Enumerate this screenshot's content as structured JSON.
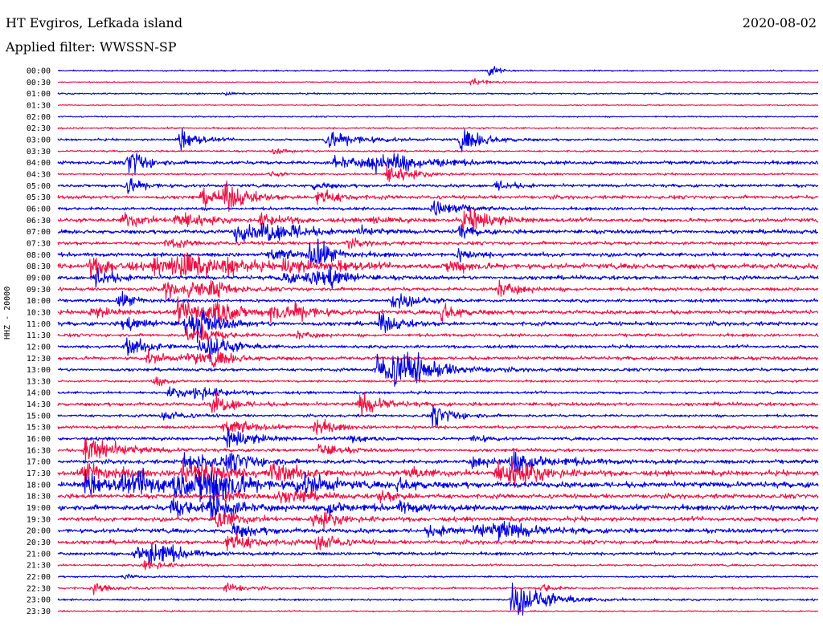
{
  "header": {
    "station": "HT Evgiros, Lefkada island",
    "date": "2020-08-02",
    "filter": "Applied filter: WWSSN-SP"
  },
  "chart_data": {
    "type": "line",
    "title": "HT Evgiros, Lefkada island",
    "ylabel": "HHZ - 20000",
    "row_labels": [
      "00:00",
      "00:30",
      "01:00",
      "01:30",
      "02:00",
      "02:30",
      "03:00",
      "03:30",
      "04:00",
      "04:30",
      "05:00",
      "05:30",
      "06:00",
      "06:30",
      "07:00",
      "07:30",
      "08:00",
      "08:30",
      "09:00",
      "09:30",
      "10:00",
      "10:30",
      "11:00",
      "11:30",
      "12:00",
      "12:30",
      "13:00",
      "13:30",
      "14:00",
      "14:30",
      "15:00",
      "15:30",
      "16:00",
      "16:30",
      "17:00",
      "17:30",
      "18:00",
      "18:30",
      "19:00",
      "19:30",
      "20:00",
      "20:30",
      "21:00",
      "21:30",
      "22:00",
      "22:30",
      "23:00",
      "23:30"
    ],
    "colors": {
      "even_rows": "#0000dd",
      "odd_rows": "#ee1144"
    },
    "x_range_minutes": [
      0,
      30
    ],
    "series": [
      {
        "row": 0,
        "noise": 0.6,
        "events": [
          [
            17.0,
            9,
            0.3
          ]
        ]
      },
      {
        "row": 1,
        "noise": 0.5,
        "events": [
          [
            16.3,
            5,
            0.6
          ]
        ]
      },
      {
        "row": 2,
        "noise": 0.7,
        "events": [
          [
            6.6,
            3,
            0.2
          ]
        ]
      },
      {
        "row": 3,
        "noise": 0.5,
        "events": []
      },
      {
        "row": 4,
        "noise": 0.6,
        "events": []
      },
      {
        "row": 5,
        "noise": 0.8,
        "events": []
      },
      {
        "row": 6,
        "noise": 1.0,
        "events": [
          [
            4.8,
            14,
            0.6
          ],
          [
            10.6,
            10,
            1.2
          ],
          [
            15.9,
            12,
            0.9
          ]
        ]
      },
      {
        "row": 7,
        "noise": 0.8,
        "events": [
          [
            8.5,
            3,
            0.6
          ]
        ]
      },
      {
        "row": 8,
        "noise": 1.6,
        "events": [
          [
            2.8,
            18,
            0.5
          ],
          [
            10.9,
            6,
            1.5
          ],
          [
            12.3,
            7,
            1.2
          ],
          [
            13.3,
            6,
            0.8
          ],
          [
            14.9,
            5,
            0.6
          ]
        ]
      },
      {
        "row": 9,
        "noise": 0.9,
        "events": [
          [
            8.4,
            3,
            0.4
          ],
          [
            13.0,
            12,
            0.8
          ]
        ]
      },
      {
        "row": 10,
        "noise": 1.4,
        "events": [
          [
            2.7,
            10,
            0.6
          ],
          [
            10.1,
            4,
            0.6
          ],
          [
            17.3,
            6,
            0.6
          ]
        ]
      },
      {
        "row": 11,
        "noise": 1.6,
        "events": [
          [
            5.7,
            9,
            0.8
          ],
          [
            6.6,
            12,
            0.8
          ],
          [
            10.2,
            10,
            0.7
          ]
        ]
      },
      {
        "row": 12,
        "noise": 1.4,
        "events": [
          [
            14.8,
            9,
            0.7
          ],
          [
            15.3,
            4,
            0.6
          ]
        ]
      },
      {
        "row": 13,
        "noise": 1.8,
        "events": [
          [
            2.6,
            10,
            0.6
          ],
          [
            4.6,
            6,
            0.9
          ],
          [
            5.1,
            5,
            0.6
          ],
          [
            8.0,
            6,
            0.9
          ],
          [
            12.3,
            4,
            0.6
          ],
          [
            16.0,
            9,
            0.7
          ],
          [
            16.4,
            7,
            0.9
          ]
        ]
      },
      {
        "row": 14,
        "noise": 1.8,
        "events": [
          [
            7.0,
            10,
            1.0
          ],
          [
            8.1,
            8,
            1.1
          ],
          [
            9.2,
            5,
            0.6
          ],
          [
            11.8,
            4,
            0.8
          ],
          [
            15.8,
            6,
            0.6
          ]
        ]
      },
      {
        "row": 15,
        "noise": 1.6,
        "events": [
          [
            4.3,
            5,
            0.7
          ],
          [
            11.4,
            4,
            0.7
          ]
        ]
      },
      {
        "row": 16,
        "noise": 1.8,
        "events": [
          [
            8.4,
            8,
            0.6
          ],
          [
            9.9,
            10,
            0.8
          ],
          [
            10.1,
            9,
            0.6
          ],
          [
            15.8,
            6,
            0.6
          ]
        ]
      },
      {
        "row": 17,
        "noise": 2.4,
        "events": [
          [
            1.3,
            10,
            1.0
          ],
          [
            3.8,
            6,
            1.0
          ],
          [
            4.4,
            7,
            1.0
          ],
          [
            4.8,
            10,
            1.0
          ],
          [
            6.6,
            8,
            0.8
          ],
          [
            8.9,
            8,
            1.0
          ],
          [
            11.1,
            5,
            0.8
          ],
          [
            15.4,
            8,
            0.7
          ]
        ]
      },
      {
        "row": 18,
        "noise": 1.8,
        "events": [
          [
            1.5,
            12,
            0.6
          ],
          [
            8.8,
            6,
            0.8
          ],
          [
            9.8,
            6,
            0.9
          ],
          [
            10.6,
            12,
            0.6
          ]
        ]
      },
      {
        "row": 19,
        "noise": 1.6,
        "events": [
          [
            4.2,
            10,
            0.6
          ],
          [
            5.2,
            8,
            0.6
          ],
          [
            6.0,
            8,
            0.8
          ],
          [
            17.3,
            10,
            0.7
          ]
        ]
      },
      {
        "row": 20,
        "noise": 1.4,
        "events": [
          [
            2.4,
            8,
            0.7
          ],
          [
            13.2,
            10,
            0.8
          ]
        ]
      },
      {
        "row": 21,
        "noise": 1.8,
        "events": [
          [
            1.3,
            6,
            0.8
          ],
          [
            4.7,
            12,
            0.7
          ],
          [
            5.4,
            8,
            0.9
          ],
          [
            6.1,
            13,
            0.8
          ],
          [
            8.4,
            10,
            0.7
          ],
          [
            9.3,
            8,
            0.9
          ],
          [
            15.1,
            10,
            0.7
          ]
        ]
      },
      {
        "row": 22,
        "noise": 1.8,
        "events": [
          [
            2.6,
            8,
            0.8
          ],
          [
            5.0,
            9,
            0.9
          ],
          [
            5.5,
            10,
            0.8
          ],
          [
            12.7,
            10,
            0.7
          ]
        ]
      },
      {
        "row": 23,
        "noise": 1.4,
        "events": [
          [
            5.1,
            6,
            0.7
          ],
          [
            5.6,
            6,
            0.8
          ],
          [
            9.3,
            5,
            0.6
          ]
        ]
      },
      {
        "row": 24,
        "noise": 1.4,
        "events": [
          [
            2.7,
            10,
            0.9
          ],
          [
            5.6,
            6,
            0.9
          ],
          [
            6.0,
            8,
            0.8
          ]
        ]
      },
      {
        "row": 25,
        "noise": 1.6,
        "events": [
          [
            3.5,
            6,
            0.8
          ],
          [
            5.1,
            6,
            0.9
          ],
          [
            6.1,
            6,
            0.8
          ]
        ]
      },
      {
        "row": 26,
        "noise": 1.4,
        "events": [
          [
            12.6,
            14,
            1.6
          ],
          [
            13.2,
            9,
            1.0
          ],
          [
            13.6,
            8,
            1.0
          ]
        ]
      },
      {
        "row": 27,
        "noise": 1.0,
        "events": [
          [
            3.8,
            5,
            0.6
          ]
        ]
      },
      {
        "row": 28,
        "noise": 1.2,
        "events": [
          [
            4.4,
            5,
            0.8
          ],
          [
            5.4,
            7,
            0.9
          ]
        ]
      },
      {
        "row": 29,
        "noise": 1.6,
        "events": [
          [
            6.1,
            10,
            0.8
          ],
          [
            11.9,
            12,
            0.8
          ]
        ]
      },
      {
        "row": 30,
        "noise": 1.2,
        "events": [
          [
            4.1,
            5,
            0.8
          ],
          [
            14.8,
            12,
            0.7
          ]
        ]
      },
      {
        "row": 31,
        "noise": 1.4,
        "events": [
          [
            6.6,
            9,
            0.9
          ],
          [
            10.1,
            11,
            0.6
          ]
        ]
      },
      {
        "row": 32,
        "noise": 1.4,
        "events": [
          [
            6.7,
            12,
            0.9
          ],
          [
            11.5,
            6,
            0.6
          ],
          [
            16.4,
            5,
            0.5
          ]
        ]
      },
      {
        "row": 33,
        "noise": 1.4,
        "events": [
          [
            1.1,
            17,
            1.1
          ],
          [
            10.3,
            8,
            0.7
          ]
        ]
      },
      {
        "row": 34,
        "noise": 1.8,
        "events": [
          [
            5.0,
            10,
            1.2
          ],
          [
            6.7,
            9,
            0.9
          ],
          [
            16.3,
            5,
            1.0
          ],
          [
            17.9,
            12,
            1.4
          ]
        ]
      },
      {
        "row": 35,
        "noise": 2.2,
        "events": [
          [
            1.0,
            14,
            1.0
          ],
          [
            4.9,
            15,
            0.9
          ],
          [
            5.6,
            9,
            1.1
          ],
          [
            8.4,
            12,
            1.0
          ],
          [
            13.7,
            5,
            1.1
          ],
          [
            17.3,
            10,
            1.2
          ],
          [
            17.7,
            9,
            1.1
          ]
        ]
      },
      {
        "row": 36,
        "noise": 2.6,
        "events": [
          [
            1.1,
            14,
            0.8
          ],
          [
            2.4,
            7,
            1.5
          ],
          [
            3.2,
            8,
            1.4
          ],
          [
            4.6,
            10,
            1.2
          ],
          [
            5.6,
            14,
            1.0
          ],
          [
            6.1,
            11,
            1.1
          ],
          [
            9.3,
            6,
            1.0
          ],
          [
            9.8,
            7,
            0.9
          ],
          [
            13.4,
            6,
            0.8
          ]
        ]
      },
      {
        "row": 37,
        "noise": 2.0,
        "events": [
          [
            6.6,
            7,
            0.9
          ],
          [
            8.7,
            5,
            0.7
          ],
          [
            9.4,
            5,
            0.7
          ],
          [
            12.7,
            6,
            0.8
          ]
        ]
      },
      {
        "row": 38,
        "noise": 2.4,
        "events": [
          [
            4.5,
            10,
            0.9
          ],
          [
            6.0,
            14,
            0.9
          ],
          [
            10.6,
            8,
            0.9
          ],
          [
            13.5,
            5,
            0.9
          ]
        ]
      },
      {
        "row": 39,
        "noise": 2.0,
        "events": [
          [
            6.3,
            13,
            0.7
          ],
          [
            10.1,
            9,
            0.9
          ]
        ]
      },
      {
        "row": 40,
        "noise": 2.0,
        "events": [
          [
            6.9,
            7,
            0.9
          ],
          [
            14.6,
            5,
            1.2
          ],
          [
            16.5,
            6,
            1.1
          ],
          [
            17.3,
            8,
            1.2
          ]
        ]
      },
      {
        "row": 41,
        "noise": 1.8,
        "events": [
          [
            6.6,
            12,
            0.9
          ],
          [
            10.2,
            10,
            0.7
          ]
        ]
      },
      {
        "row": 42,
        "noise": 1.4,
        "events": [
          [
            3.0,
            9,
            1.1
          ],
          [
            3.6,
            14,
            0.8
          ]
        ]
      },
      {
        "row": 43,
        "noise": 0.9,
        "events": [
          [
            3.4,
            6,
            0.7
          ]
        ]
      },
      {
        "row": 44,
        "noise": 0.8,
        "events": [
          [
            2.6,
            3,
            0.4
          ]
        ]
      },
      {
        "row": 45,
        "noise": 1.0,
        "events": [
          [
            1.4,
            5,
            0.7
          ],
          [
            6.6,
            6,
            0.6
          ],
          [
            19.1,
            5,
            0.4
          ]
        ]
      },
      {
        "row": 46,
        "noise": 0.9,
        "events": [
          [
            17.9,
            19,
            1.2
          ]
        ]
      },
      {
        "row": 47,
        "noise": 0.6,
        "events": []
      }
    ]
  }
}
